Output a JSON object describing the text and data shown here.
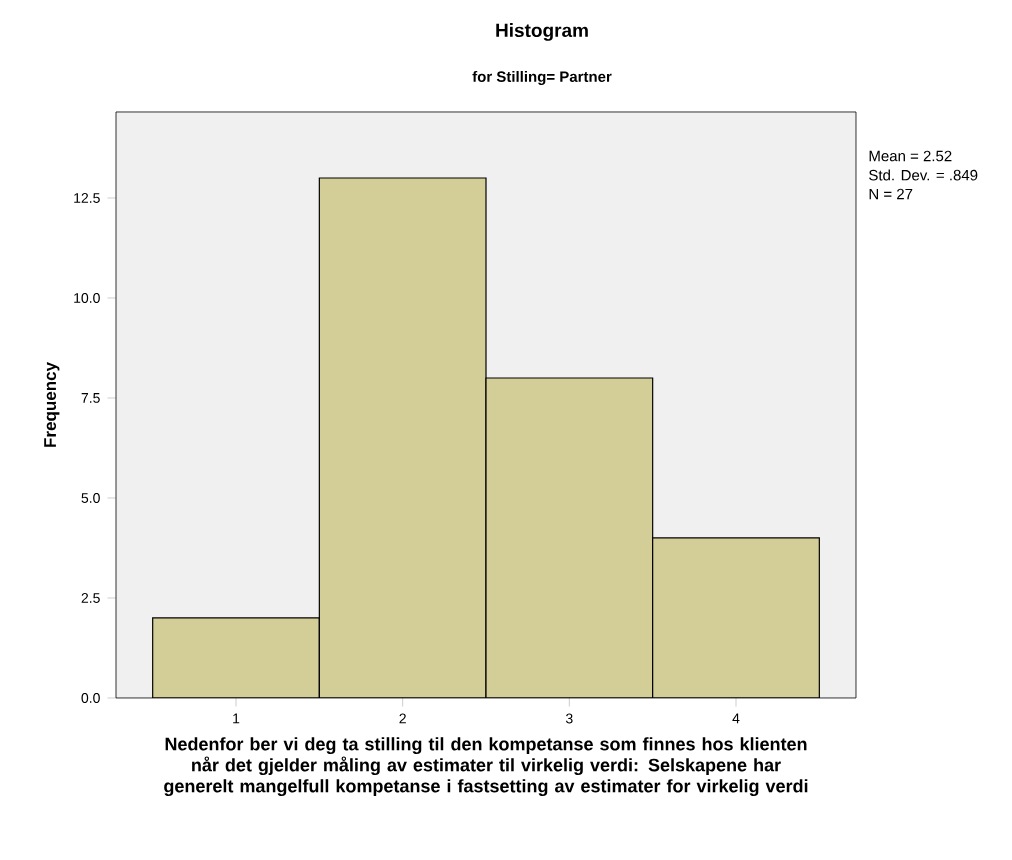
{
  "chart_data": {
    "type": "histogram",
    "title": "Histogram",
    "subtitle": "for Stilling= Partner",
    "xlabel": "Nedenfor ber vi deg ta stilling til den kompetanse som finnes hos klienten når det gjelder måling av estimater til virkelig verdi: Selskapene har generelt mangelfull kompetanse i fastsetting av estimater for virkelig verdi",
    "ylabel": "Frequency",
    "bins": [
      0.5,
      1.5,
      2.5,
      3.5,
      4.5
    ],
    "values": [
      2,
      13,
      8,
      4
    ],
    "color": "#d3ce98",
    "xlim": [
      0.28,
      4.72
    ],
    "xticks": [
      1,
      2,
      3,
      4
    ],
    "ylim": [
      0,
      14.65
    ],
    "yticks": [
      {
        "value": 0,
        "label": "0.0"
      },
      {
        "value": 2.5,
        "label": "2.5"
      },
      {
        "value": 5,
        "label": "5.0"
      },
      {
        "value": 7.5,
        "label": "7.5"
      },
      {
        "value": 10,
        "label": "10.0"
      },
      {
        "value": 12.5,
        "label": "12.5"
      }
    ],
    "grid": false,
    "annotations": [
      "Mean = 2.52",
      "Std. Dev. = .849",
      "N = 27"
    ]
  }
}
